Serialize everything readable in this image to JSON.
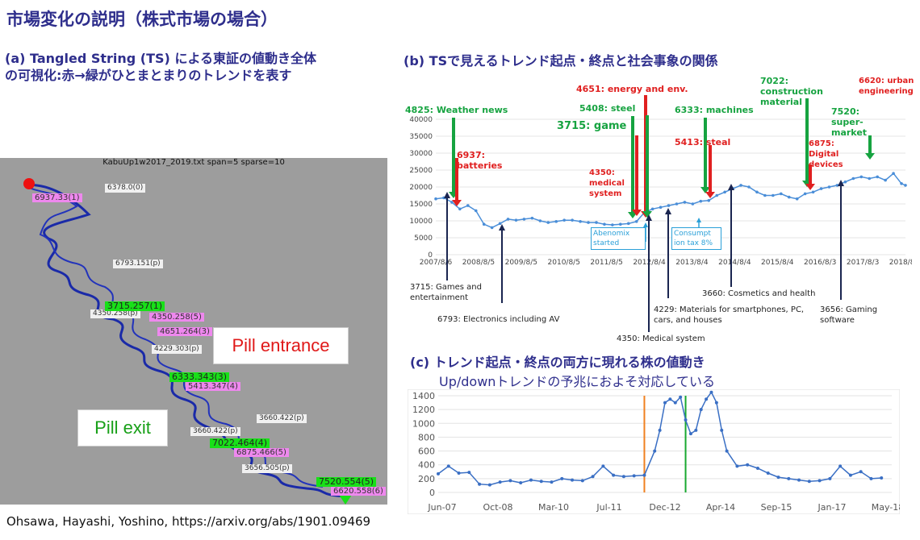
{
  "header": {
    "title": "市場変化の説明（株式市場の場合）",
    "sub_a_line1": "(a) Tangled String (TS) による東証の値動き全体",
    "sub_a_line2": "の可視化:赤→緑がひとまとまりのトレンドを表す",
    "sub_b": "(b) TSで見えるトレンド起点・終点と社会事象の関係",
    "sub_c": "(c) トレンド起点・終点の両方に現れる株の値動き",
    "sub_c2": "Up/downトレンドの予兆におよそ対応している",
    "citation": "Ohsawa, Hayashi, Yoshino, https://arxiv.org/abs/1901.09469"
  },
  "panel_a": {
    "title": "KabuUp1w2017_2019.txt span=5 sparse=10",
    "pill_entrance": "Pill entrance",
    "pill_exit": "Pill exit",
    "labels": [
      {
        "text": "6937.33(1)",
        "kind": "p"
      },
      {
        "text": "6378.0(0)",
        "kind": "w"
      },
      {
        "text": "6793.151(p)",
        "kind": "w"
      },
      {
        "text": "4350.258(p)",
        "kind": "w"
      },
      {
        "text": "3715.257(1)",
        "kind": "g"
      },
      {
        "text": "4350.258(5)",
        "kind": "p"
      },
      {
        "text": "4651.264(3)",
        "kind": "p"
      },
      {
        "text": "4229.303(p)",
        "kind": "w"
      },
      {
        "text": "6333.343(3)",
        "kind": "g"
      },
      {
        "text": "5413.347(4)",
        "kind": "p"
      },
      {
        "text": "3660.422(p)",
        "kind": "w"
      },
      {
        "text": "3660.422(p)",
        "kind": "w"
      },
      {
        "text": "7022.464(4)",
        "kind": "g"
      },
      {
        "text": "6875.466(5)",
        "kind": "p"
      },
      {
        "text": "3656.505(p)",
        "kind": "w"
      },
      {
        "text": "7520.554(5)",
        "kind": "g"
      },
      {
        "text": "6620.558(6)",
        "kind": "p"
      }
    ]
  },
  "panel_b": {
    "green_annotations": [
      "4825: Weather news",
      "5408: steel",
      "3715: game",
      "6333: machines",
      "7022: construction material",
      "7520: super-market"
    ],
    "red_annotations": [
      "6937: batteries",
      "4651: energy and env.",
      "4350: medical system",
      "5413: steal",
      "6875: Digital devices",
      "6620: urban engineering"
    ],
    "blue_boxes": [
      "Abenomix started",
      "Consumpt ion tax 8%"
    ],
    "bottom_notes": [
      "3715: Games and entertainment",
      "6793: Electronics including AV",
      "4350: Medical system",
      "4229: Materials for smartphones, PC, cars, and houses",
      "3660: Cosmetics and health",
      "3656: Gaming software"
    ]
  },
  "chart_data": [
    {
      "type": "line",
      "title": "",
      "x_ticks": [
        "2007/8/6",
        "2008/8/5",
        "2009/8/5",
        "2010/8/5",
        "2011/8/5",
        "2012/8/4",
        "2013/8/4",
        "2014/8/4",
        "2015/8/4",
        "2016/8/3",
        "2017/8/3",
        "2018/8/3"
      ],
      "y_ticks": [
        0,
        5000,
        10000,
        15000,
        20000,
        25000,
        30000,
        35000,
        40000
      ],
      "ylim": [
        0,
        40000
      ],
      "xlim": [
        2007.6,
        2019.3
      ],
      "color": "#4a8ed8",
      "series": [
        {
          "x": [
            2007.6,
            2007.8,
            2008.0,
            2008.2,
            2008.4,
            2008.6,
            2008.8,
            2009.0,
            2009.2,
            2009.4,
            2009.6,
            2009.8,
            2010.0,
            2010.2,
            2010.4,
            2010.6,
            2010.8,
            2011.0,
            2011.2,
            2011.4,
            2011.6,
            2011.8,
            2012.0,
            2012.2,
            2012.4,
            2012.6,
            2012.8,
            2013.0,
            2013.2,
            2013.4,
            2013.6,
            2013.8,
            2014.0,
            2014.2,
            2014.4,
            2014.6,
            2014.8,
            2015.0,
            2015.2,
            2015.4,
            2015.6,
            2015.8,
            2016.0,
            2016.2,
            2016.4,
            2016.6,
            2016.8,
            2017.0,
            2017.2,
            2017.4,
            2017.6,
            2017.8,
            2018.0,
            2018.2,
            2018.4,
            2018.6,
            2018.8,
            2019.0,
            2019.2,
            2019.3
          ],
          "y": [
            16500,
            16800,
            15500,
            13500,
            14500,
            13000,
            9000,
            8000,
            9200,
            10500,
            10200,
            10500,
            10800,
            10000,
            9500,
            9800,
            10200,
            10200,
            9800,
            9500,
            9500,
            9000,
            8800,
            9000,
            9200,
            9800,
            12500,
            13500,
            14000,
            14500,
            15000,
            15500,
            15000,
            15800,
            16000,
            17500,
            18500,
            19500,
            20500,
            20000,
            18500,
            17500,
            17500,
            18000,
            17000,
            16500,
            18000,
            18500,
            19500,
            20000,
            20500,
            21500,
            22500,
            23000,
            22500,
            23000,
            22000,
            24000,
            21000,
            20500
          ]
        }
      ]
    },
    {
      "type": "line",
      "title": "",
      "x_ticks": [
        "Jun-07",
        "Oct-08",
        "Mar-10",
        "Jul-11",
        "Dec-12",
        "Apr-14",
        "Sep-15",
        "Jan-17",
        "May-18"
      ],
      "y_ticks": [
        0,
        200,
        400,
        600,
        800,
        1000,
        1200,
        1400
      ],
      "ylim": [
        0,
        1400
      ],
      "xlim": [
        0,
        44
      ],
      "color": "#3a6fc4",
      "orange_line_at": 20,
      "green_line_at": 24,
      "series": [
        {
          "x": [
            0,
            1,
            2,
            3,
            4,
            5,
            6,
            7,
            8,
            9,
            10,
            11,
            12,
            13,
            14,
            15,
            16,
            17,
            18,
            19,
            20,
            21,
            21.5,
            22,
            22.5,
            23,
            23.5,
            24,
            24.5,
            25,
            25.5,
            26,
            26.5,
            27,
            27.5,
            28,
            29,
            30,
            31,
            32,
            33,
            34,
            35,
            36,
            37,
            38,
            39,
            40,
            41,
            42,
            43
          ],
          "y": [
            270,
            380,
            280,
            290,
            120,
            110,
            150,
            170,
            140,
            180,
            160,
            150,
            200,
            180,
            170,
            230,
            380,
            250,
            230,
            240,
            250,
            600,
            900,
            1300,
            1350,
            1300,
            1380,
            1050,
            850,
            900,
            1200,
            1350,
            1450,
            1300,
            900,
            600,
            380,
            400,
            350,
            280,
            220,
            200,
            180,
            160,
            170,
            200,
            380,
            250,
            300,
            200,
            210
          ]
        }
      ]
    }
  ]
}
